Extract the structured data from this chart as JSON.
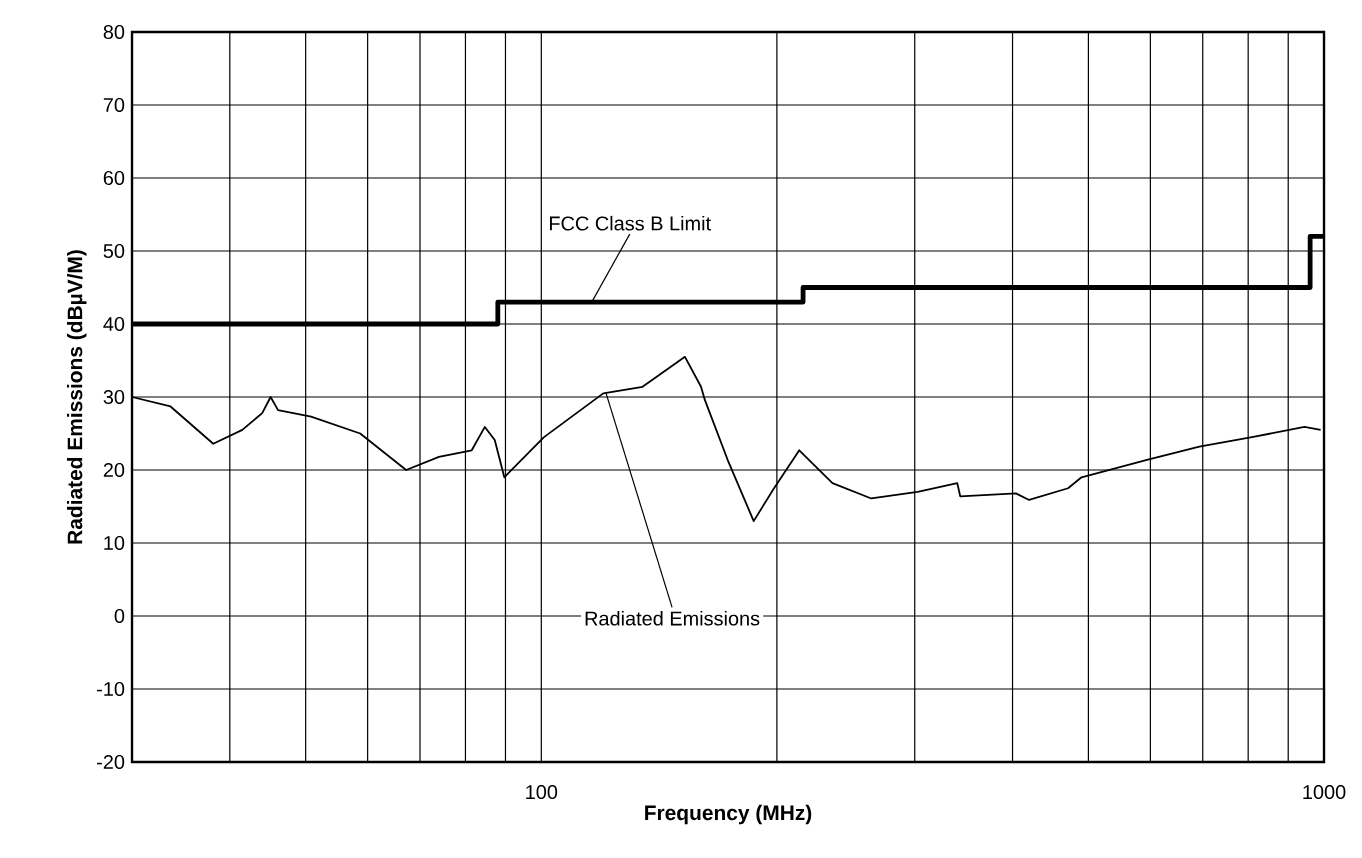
{
  "chart_data": {
    "type": "line",
    "xlabel": "Frequency (MHz)",
    "ylabel": "Radiated Emissions (dBµV/M)",
    "log": "x",
    "grid": true,
    "xlim": [
      30,
      1000
    ],
    "ylim": [
      -20,
      80
    ],
    "xticks": [
      {
        "value": 40,
        "label": null
      },
      {
        "value": 50,
        "label": null
      },
      {
        "value": 60,
        "label": null
      },
      {
        "value": 70,
        "label": null
      },
      {
        "value": 80,
        "label": null
      },
      {
        "value": 90,
        "label": null
      },
      100,
      {
        "value": 200,
        "label": null
      },
      {
        "value": 300,
        "label": null
      },
      {
        "value": 400,
        "label": null
      },
      {
        "value": 500,
        "label": null
      },
      {
        "value": 600,
        "label": null
      },
      {
        "value": 700,
        "label": null
      },
      {
        "value": 800,
        "label": null
      },
      {
        "value": 900,
        "label": null
      },
      1000
    ],
    "yticks": [
      -20,
      -10,
      0,
      10,
      20,
      30,
      40,
      50,
      60,
      70,
      80
    ],
    "series": [
      {
        "type": "step",
        "color": "#000000",
        "x": [
          30,
          88,
          216,
          960,
          1000
        ],
        "values": [
          40,
          43,
          45,
          52,
          52
        ]
      },
      {
        "color": "#000000",
        "x": [
          30,
          33.6,
          38.1,
          41.5,
          44.0,
          45.1,
          46.1,
          50.8,
          58.7,
          67.2,
          74.0,
          81.5,
          84.7,
          87.2,
          89.7,
          100.8,
          120,
          134.7,
          152.6,
          160,
          161.8,
          173,
          186.8,
          197.8,
          213.6,
          235.5,
          264,
          302.6,
          340,
          343,
          404,
          420,
          471,
          490,
          594,
          693,
          809,
          944,
          990
        ],
        "values": [
          30.0,
          28.7,
          23.6,
          25.5,
          27.8,
          30.0,
          28.2,
          27.3,
          25.0,
          20.0,
          21.8,
          22.7,
          25.9,
          24.1,
          19.0,
          24.5,
          30.5,
          31.4,
          35.5,
          31.4,
          29.6,
          21.4,
          13.0,
          17.3,
          22.7,
          18.2,
          16.1,
          17.0,
          18.2,
          16.4,
          16.8,
          15.9,
          17.5,
          19.0,
          21.4,
          23.2,
          24.5,
          25.9,
          25.5
        ]
      }
    ],
    "annotations": [
      {
        "text": "FCC Class B Limit",
        "x": 116,
        "y": 43
      },
      {
        "text": "Radiated Emissions",
        "x": 121,
        "y": 30.5
      }
    ]
  }
}
